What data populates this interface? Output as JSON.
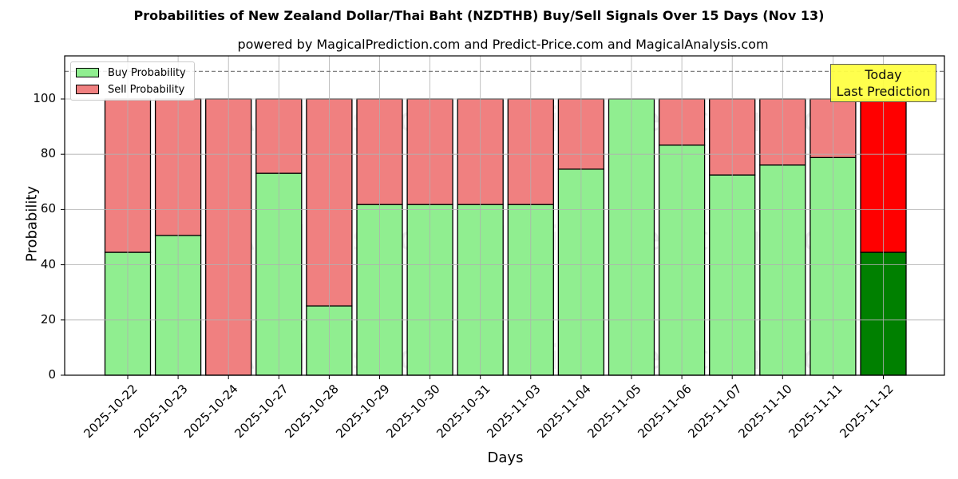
{
  "title": "Probabilities of New Zealand Dollar/Thai Baht (NZDTHB) Buy/Sell Signals Over 15 Days (Nov 13)",
  "subtitle": "powered by MagicalPrediction.com and Predict-Price.com and MagicalAnalysis.com",
  "legend": {
    "buy": "Buy Probability",
    "sell": "Sell Probability"
  },
  "annotation": {
    "line1": "Today",
    "line2": "Last Prediction"
  },
  "axis": {
    "xlabel": "Days",
    "ylabel": "Probability",
    "yticks": [
      "0",
      "20",
      "40",
      "60",
      "80",
      "100"
    ]
  },
  "watermarks": [
    "MagicalAnalysis.com",
    "MagicalPrediction.com"
  ],
  "colors": {
    "buy": "#90ee90",
    "sell": "#f08080",
    "buy_today": "#008000",
    "sell_today": "#ff0000",
    "annotation_bg": "#ffff44"
  },
  "chart_data": {
    "type": "bar",
    "stacked": true,
    "title": "Probabilities of New Zealand Dollar/Thai Baht (NZDTHB) Buy/Sell Signals Over 15 Days (Nov 13)",
    "subtitle": "powered by MagicalPrediction.com and Predict-Price.com and MagicalAnalysis.com",
    "xlabel": "Days",
    "ylabel": "Probability",
    "ylim": [
      0,
      115
    ],
    "yticks": [
      0,
      20,
      40,
      60,
      80,
      100
    ],
    "grid": true,
    "legend_position": "upper left",
    "reference_line": {
      "y": 110,
      "style": "dashed",
      "color": "#808080"
    },
    "categories": [
      "2025-10-22",
      "2025-10-23",
      "2025-10-24",
      "2025-10-27",
      "2025-10-28",
      "2025-10-29",
      "2025-10-30",
      "2025-10-31",
      "2025-11-03",
      "2025-11-04",
      "2025-11-05",
      "2025-11-06",
      "2025-11-07",
      "2025-11-10",
      "2025-11-11",
      "2025-11-12"
    ],
    "series": [
      {
        "name": "Buy Probability",
        "values": [
          44.5,
          50.6,
          0,
          73.1,
          25.1,
          61.8,
          61.8,
          61.8,
          61.8,
          74.6,
          100,
          83.3,
          72.5,
          76.1,
          78.8,
          44.5
        ]
      },
      {
        "name": "Sell Probability",
        "values": [
          55.5,
          49.4,
          100,
          26.9,
          74.9,
          38.2,
          38.2,
          38.2,
          38.2,
          25.4,
          0,
          16.7,
          27.5,
          23.9,
          21.2,
          55.5
        ]
      }
    ],
    "annotations": [
      {
        "text": "Today\nLast Prediction",
        "x": "2025-11-12"
      }
    ]
  }
}
